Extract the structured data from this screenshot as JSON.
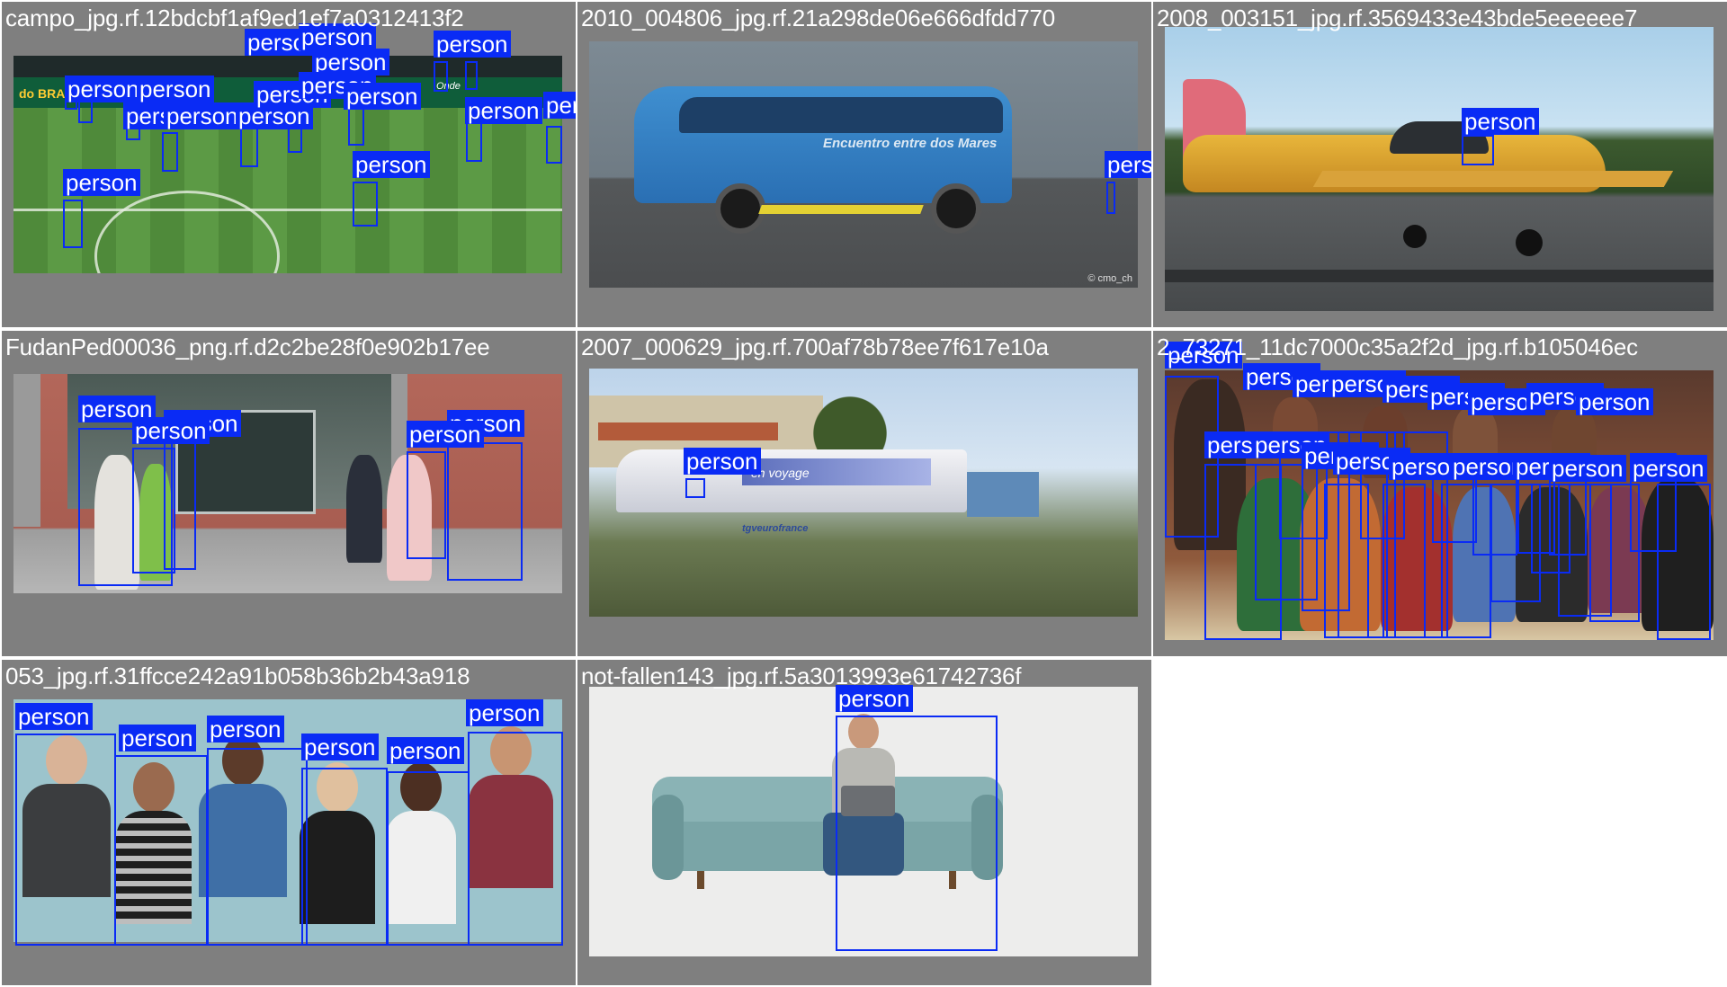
{
  "detection_label": "person",
  "colors": {
    "box": "#0a2bf5",
    "tile_background": "#7f7f7f",
    "title_text": "#ffffff"
  },
  "tiles": [
    {
      "title": "campo_jpg.rf.12bdcbf1af9ed1ef7a0312413f2",
      "scene_text": [
        "do BRASIL",
        "Onde"
      ]
    },
    {
      "title": "2010_004806_jpg.rf.21a298de06e666dfdd770",
      "scene_text": [
        "Encuentro entre dos Mares",
        "© cmo_ch"
      ]
    },
    {
      "title": "2008_003151_jpg.rf.3569433e43bde5eeeeee7"
    },
    {
      "title": "FudanPed00036_png.rf.d2c2be28f0e902b17ee"
    },
    {
      "title": "2007_000629_jpg.rf.700af78b78ee7f617e10a",
      "scene_text": [
        "en voyage",
        "tgveurofrance"
      ]
    },
    {
      "title": "2_73271_11dc7000c35a2f2d_jpg.rf.b105046ec"
    },
    {
      "title": "053_jpg.rf.31ffcce242a91b058b36b2b43a918"
    },
    {
      "title": "not-fallen143_jpg.rf.5a3013993e61742736f"
    }
  ]
}
